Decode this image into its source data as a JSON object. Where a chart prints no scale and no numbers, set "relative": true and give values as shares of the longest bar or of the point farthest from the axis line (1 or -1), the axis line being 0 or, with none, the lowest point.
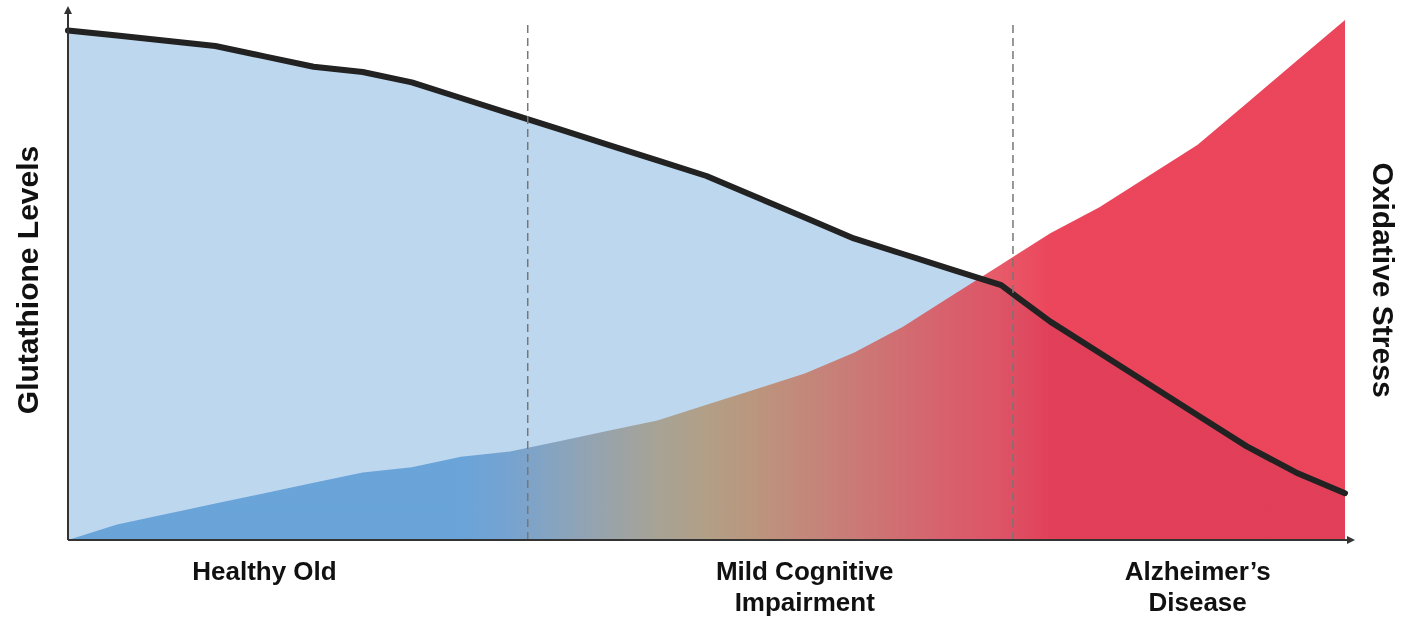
{
  "chart_data": {
    "type": "area",
    "relative": true,
    "ylabel": "Glutathione Levels",
    "y2label": "Oxidative Stress",
    "categories": [
      null,
      null,
      null,
      null,
      "Healthy Old",
      null,
      null,
      null,
      null,
      null,
      null,
      null,
      null,
      null,
      null,
      "Mild Cognitive Impairment",
      null,
      null,
      null,
      null,
      null,
      null,
      null,
      "Alzheimer’s Disease",
      null,
      null,
      null
    ],
    "series": [
      {
        "color": "#bdd7ee",
        "values": [
          0.98,
          0.97,
          0.96,
          0.95,
          0.93,
          0.91,
          0.9,
          0.88,
          0.85,
          0.82,
          0.79,
          0.76,
          0.73,
          0.7,
          0.66,
          0.62,
          0.58,
          0.55,
          0.52,
          0.49,
          0.42,
          0.36,
          0.3,
          0.24,
          0.18,
          0.13,
          0.09
        ]
      },
      {
        "type": "area",
        "colors": [
          "#5b9bd5",
          "#5b9bd5",
          "#5b9bd5",
          "#5b9bd5",
          "#5b9bd5",
          "#5b9bd5",
          "#5b9bd5",
          "#5b9bd5",
          "#5b9bd5",
          "#6a9acb",
          "#7f9bb5",
          "#939a9e",
          "#a39a86",
          "#b09574",
          "#bb8a6a",
          "#c47a66",
          "#cc6a62",
          "#d55a5c",
          "#dd4a55",
          "#e33d4e",
          "#e8253f",
          "#e8253f",
          "#e8253f",
          "#e8253f",
          "#e8253f",
          "#e8253f",
          "#e8253f"
        ],
        "values": [
          0,
          0.03,
          0.05,
          0.07,
          0.09,
          0.11,
          0.13,
          0.14,
          0.16,
          0.17,
          0.19,
          0.21,
          0.23,
          0.26,
          0.29,
          0.32,
          0.36,
          0.41,
          0.47,
          0.53,
          0.59,
          0.64,
          0.7,
          0.76,
          0.84,
          0.92,
          1.0
        ]
      }
    ]
  }
}
